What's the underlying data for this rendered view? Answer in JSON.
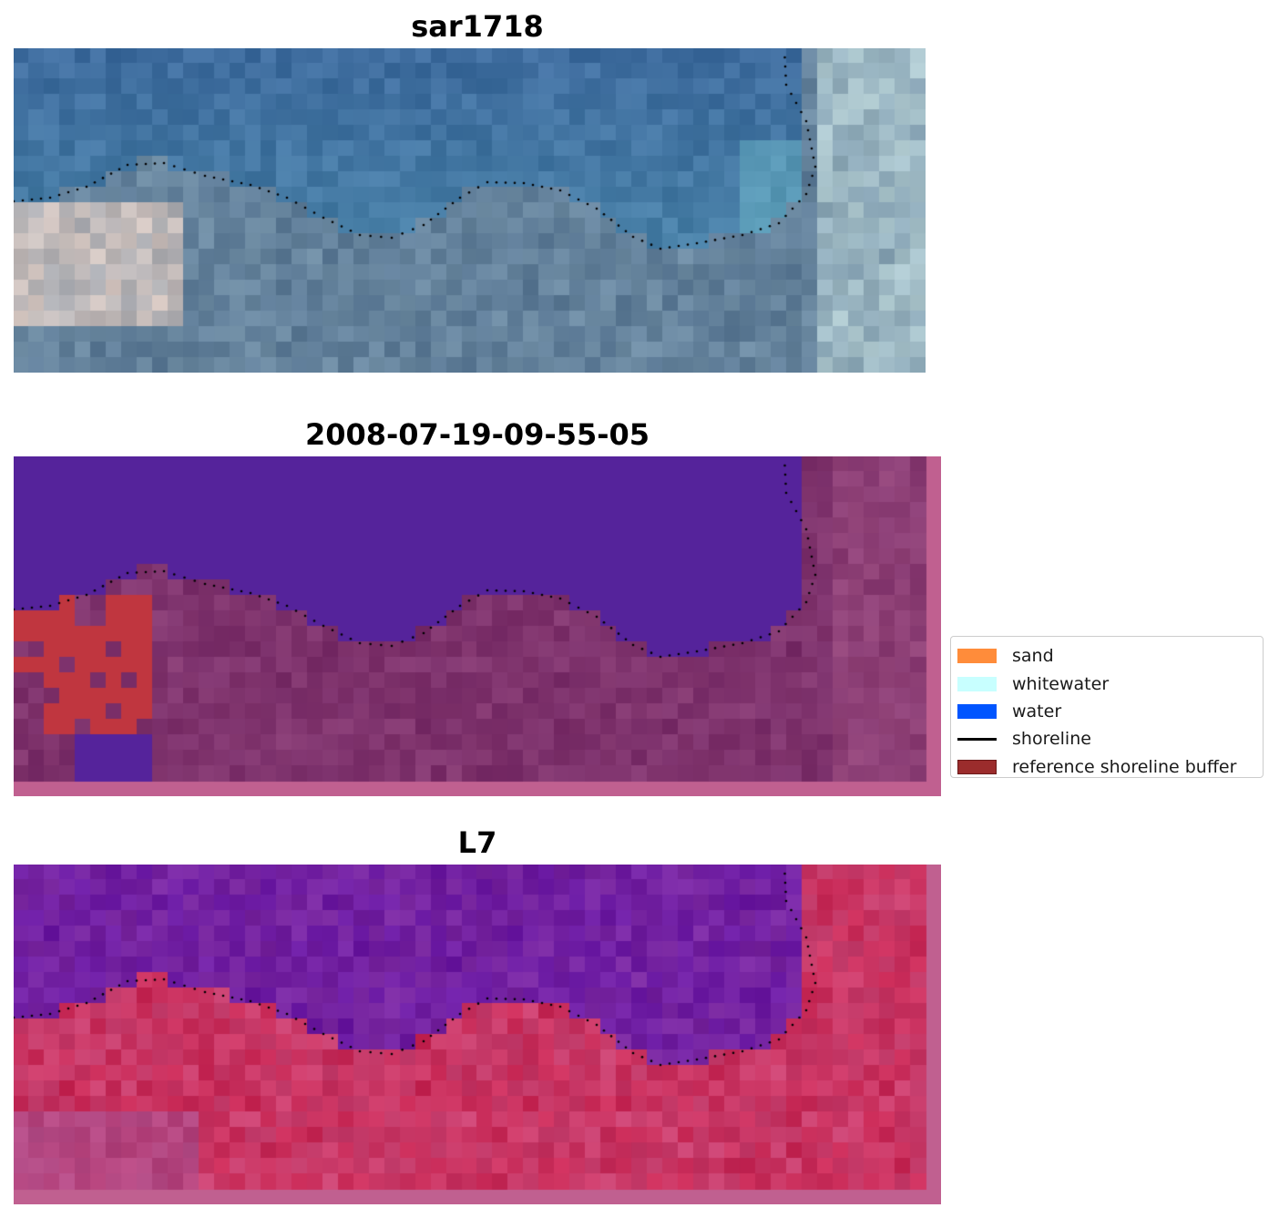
{
  "panels": [
    {
      "title": "sar1718",
      "mode": "rgb"
    },
    {
      "title": "2008-07-19-09-55-05",
      "mode": "classified"
    },
    {
      "title": "L7",
      "mode": "index"
    }
  ],
  "legend": {
    "items": [
      {
        "label": "sand",
        "color": "#ff8c3a",
        "kind": "patch"
      },
      {
        "label": "whitewater",
        "color": "#c8ffff",
        "kind": "patch"
      },
      {
        "label": "water",
        "color": "#0055ff",
        "kind": "patch"
      },
      {
        "label": "shoreline",
        "color": "#000000",
        "kind": "line"
      },
      {
        "label": "reference shoreline buffer",
        "color": "#9b2c2c",
        "kind": "patch"
      }
    ]
  },
  "colors": {
    "water_class": "#55239b",
    "buffer_red": "#c0363f",
    "land_mauve": "#7a2f6a",
    "index_water": "#7a1ea0",
    "index_land": "#c8285a",
    "frame_pink": "#c06090"
  }
}
